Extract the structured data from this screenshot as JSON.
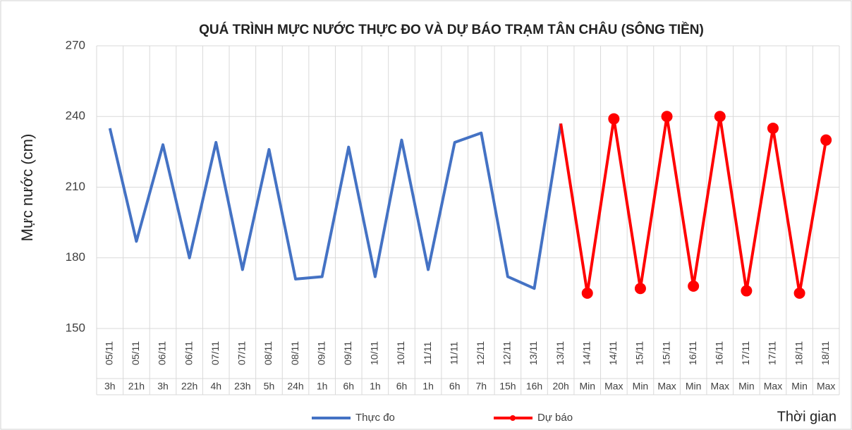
{
  "chart_data": {
    "type": "line",
    "title": "QUÁ TRÌNH MỰC NƯỚC THỰC ĐO VÀ DỰ BÁO TRẠM TÂN CHÂU (SÔNG TIỀN)",
    "y_label": "Mực nước (cm)",
    "x_label": "Thời gian",
    "category_groups": [
      "05/11",
      "05/11",
      "06/11",
      "06/11",
      "07/11",
      "07/11",
      "08/11",
      "08/11",
      "09/11",
      "09/11",
      "10/11",
      "10/11",
      "11/11",
      "11/11",
      "12/11",
      "12/11",
      "13/11",
      "13/11",
      "14/11",
      "14/11",
      "15/11",
      "15/11",
      "16/11",
      "16/11",
      "17/11",
      "17/11",
      "18/11",
      "18/11"
    ],
    "categories": [
      "3h",
      "21h",
      "3h",
      "22h",
      "4h",
      "23h",
      "5h",
      "24h",
      "1h",
      "6h",
      "1h",
      "6h",
      "1h",
      "6h",
      "7h",
      "15h",
      "16h",
      "20h",
      "Min",
      "Max",
      "Min",
      "Max",
      "Min",
      "Max",
      "Min",
      "Max",
      "Min",
      "Max"
    ],
    "series": [
      {
        "name": "Thực đo",
        "color": "#4472c4",
        "values": [
          235,
          187,
          228,
          180,
          229,
          175,
          226,
          171,
          172,
          227,
          172,
          230,
          175,
          229,
          233,
          172,
          167,
          237,
          null,
          null,
          null,
          null,
          null,
          null,
          null,
          null,
          null,
          null
        ]
      },
      {
        "name": "Dự báo",
        "color": "#ff0000",
        "values": [
          null,
          null,
          null,
          null,
          null,
          null,
          null,
          null,
          null,
          null,
          null,
          null,
          null,
          null,
          null,
          null,
          null,
          237,
          165,
          239,
          167,
          240,
          168,
          240,
          166,
          235,
          165,
          230
        ]
      }
    ],
    "ylim": [
      150,
      270
    ],
    "yticks": [
      150,
      180,
      210,
      240,
      270
    ],
    "grid": true
  }
}
